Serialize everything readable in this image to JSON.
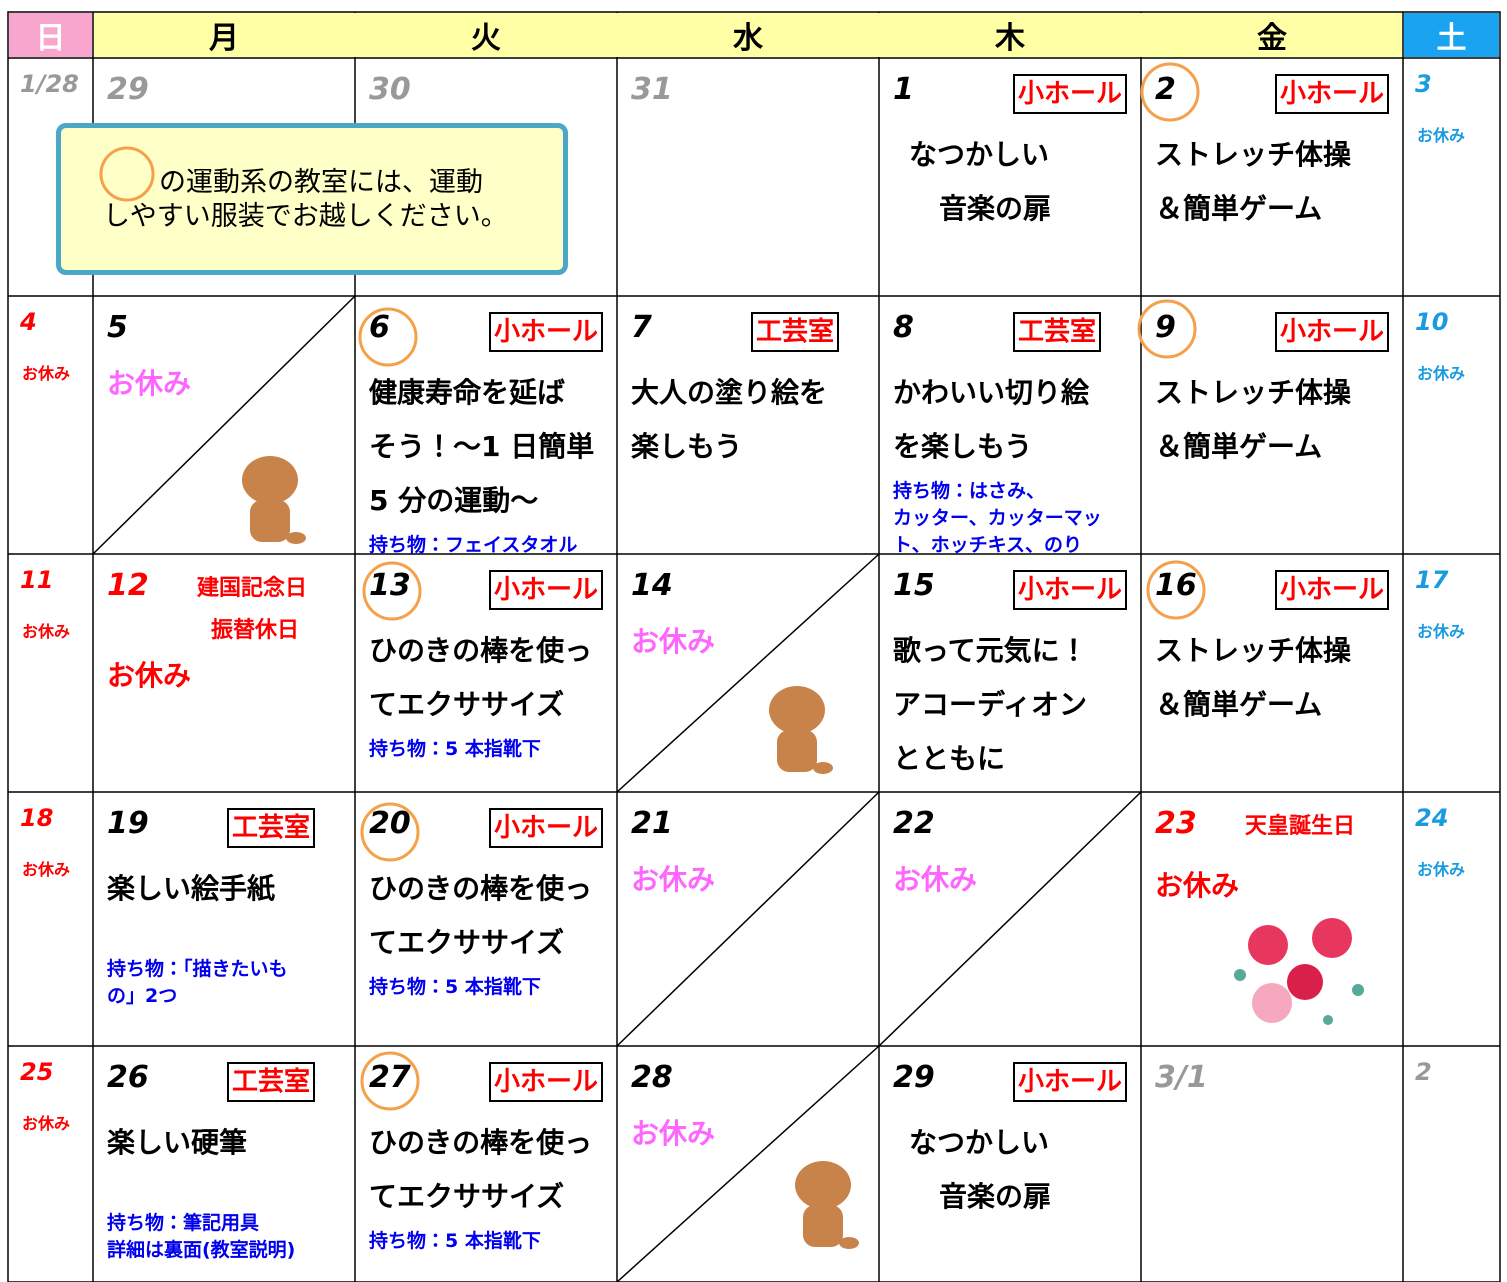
{
  "header": {
    "days": [
      "日",
      "月",
      "火",
      "水",
      "木",
      "金",
      "土"
    ]
  },
  "notice": [
    "の運動系の教室には、運動",
    "しやすい服装でお越しください。"
  ],
  "weeks": [
    [
      {
        "date": "1/28",
        "date_color": "#999999"
      },
      {
        "date": "29",
        "date_color": "#999999"
      },
      {
        "date": "30",
        "date_color": "#999999"
      },
      {
        "date": "31",
        "date_color": "#999999"
      },
      {
        "date": "1",
        "room": "小ホール",
        "title": [
          "なつかしい",
          "音楽の扉"
        ],
        "align": "center"
      },
      {
        "date": "2",
        "room": "小ホール",
        "title": [
          "ストレッチ体操",
          "＆簡単ゲーム"
        ]
      },
      {
        "date": "3",
        "off": "お休み"
      }
    ],
    [
      {
        "date": "4",
        "off": "お休み"
      },
      {
        "date": "5",
        "off": "お休み"
      },
      {
        "date": "6",
        "room": "小ホール",
        "title": [
          "健康寿命を延ば",
          "そう！～1 日簡単",
          "5 分の運動～"
        ],
        "items": [
          "持ち物：フェイスタオル"
        ]
      },
      {
        "date": "7",
        "room": "工芸室",
        "title": [
          "大人の塗り絵を",
          "楽しもう"
        ]
      },
      {
        "date": "8",
        "room": "工芸室",
        "title": [
          "かわいい切り絵",
          "を楽しもう"
        ],
        "items": [
          "持ち物：はさみ、",
          "カッター、カッターマッ",
          "ト、ホッチキス、のり"
        ]
      },
      {
        "date": "9",
        "room": "小ホール",
        "title": [
          "ストレッチ体操",
          "＆簡単ゲーム"
        ]
      },
      {
        "date": "10",
        "off": "お休み"
      }
    ],
    [
      {
        "date": "11",
        "off": "お休み"
      },
      {
        "date": "12",
        "date_color": "#ff0000",
        "holiday": [
          "建国記念日",
          "振替休日"
        ],
        "off": "お休み",
        "off_color": "#ff0000"
      },
      {
        "date": "13",
        "room": "小ホール",
        "title": [
          "ひのきの棒を使っ",
          "てエクササイズ"
        ],
        "items": [
          "持ち物：5 本指靴下"
        ]
      },
      {
        "date": "14",
        "off": "お休み"
      },
      {
        "date": "15",
        "room": "小ホール",
        "title": [
          "歌って元気に！",
          "アコーディオン",
          "とともに"
        ]
      },
      {
        "date": "16",
        "room": "小ホール",
        "title": [
          "ストレッチ体操",
          "＆簡単ゲーム"
        ]
      },
      {
        "date": "17",
        "off": "お休み"
      }
    ],
    [
      {
        "date": "18",
        "off": "お休み"
      },
      {
        "date": "19",
        "room": "工芸室",
        "title": [
          "楽しい絵手紙"
        ],
        "items": [
          "持ち物：「描きたいも",
          "の」2つ"
        ]
      },
      {
        "date": "20",
        "room": "小ホール",
        "title": [
          "ひのきの棒を使っ",
          "てエクササイズ"
        ],
        "items": [
          "持ち物：5 本指靴下"
        ]
      },
      {
        "date": "21",
        "off": "お休み"
      },
      {
        "date": "22",
        "off": "お休み"
      },
      {
        "date": "23",
        "date_color": "#ff0000",
        "holiday": [
          "天皇誕生日"
        ],
        "off": "お休み",
        "off_color": "#ff0000"
      },
      {
        "date": "24",
        "off": "お休み"
      }
    ],
    [
      {
        "date": "25",
        "off": "お休み"
      },
      {
        "date": "26",
        "room": "工芸室",
        "title": [
          "楽しい硬筆"
        ],
        "items": [
          "持ち物：筆記用具",
          "詳細は裏面(教室説明)"
        ]
      },
      {
        "date": "27",
        "room": "小ホール",
        "title": [
          "ひのきの棒を使っ",
          "てエクササイズ"
        ],
        "items": [
          "持ち物：5 本指靴下"
        ]
      },
      {
        "date": "28",
        "off": "お休み"
      },
      {
        "date": "29",
        "room": "小ホール",
        "title": [
          "なつかしい",
          "音楽の扉"
        ],
        "align": "center"
      },
      {
        "date": "3/1",
        "date_color": "#999999"
      },
      {
        "date": "2",
        "date_color": "#999999"
      }
    ]
  ]
}
